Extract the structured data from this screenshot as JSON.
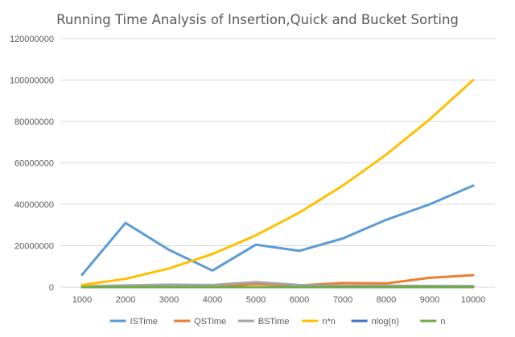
{
  "chart_data": {
    "type": "line",
    "title": "Running Time Analysis of Insertion,Quick and Bucket Sorting",
    "xlabel": "",
    "ylabel": "",
    "categories": [
      "1000",
      "2000",
      "3000",
      "4000",
      "5000",
      "6000",
      "7000",
      "8000",
      "9000",
      "10000"
    ],
    "ylim": [
      0,
      120000000
    ],
    "yticks": [
      "0",
      "20000000",
      "40000000",
      "60000000",
      "80000000",
      "100000000",
      "120000000"
    ],
    "grid": true,
    "legend_position": "bottom",
    "series": [
      {
        "name": "ISTime",
        "color": "#5b9bd5",
        "values": [
          6000000,
          31000000,
          18000000,
          8000000,
          20500000,
          17500000,
          23500000,
          32500000,
          40000000,
          49000000
        ]
      },
      {
        "name": "QSTime",
        "color": "#ed7d31",
        "values": [
          300000,
          400000,
          300000,
          400000,
          1500000,
          800000,
          2000000,
          1800000,
          4500000,
          5800000
        ]
      },
      {
        "name": "BSTime",
        "color": "#a5a5a5",
        "values": [
          400000,
          800000,
          1200000,
          1000000,
          2400000,
          1000000,
          700000,
          700000,
          600000,
          500000
        ]
      },
      {
        "name": "n*n",
        "color": "#ffc000",
        "values": [
          1000000,
          4000000,
          9000000,
          16000000,
          25000000,
          36000000,
          49000000,
          64000000,
          81000000,
          100000000
        ]
      },
      {
        "name": "nlog(n)",
        "color": "#4472c4",
        "values": [
          3000,
          6600,
          10400,
          14400,
          18500,
          22700,
          26900,
          31200,
          35600,
          40000
        ]
      },
      {
        "name": "n",
        "color": "#70ad47",
        "values": [
          1000,
          2000,
          3000,
          4000,
          5000,
          6000,
          7000,
          8000,
          9000,
          10000
        ]
      }
    ]
  }
}
